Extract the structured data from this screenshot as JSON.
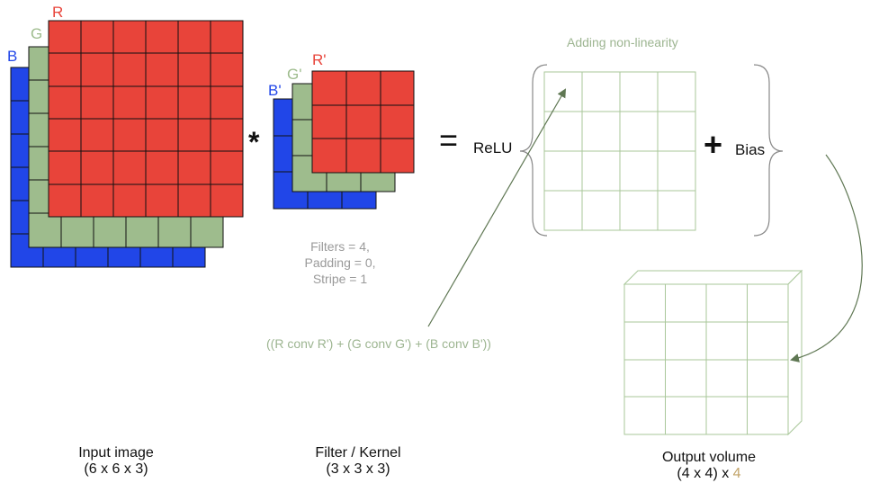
{
  "input": {
    "r_label": "R",
    "g_label": "G",
    "b_label": "B",
    "caption_line1": "Input image",
    "caption_line2": "(6 x 6 x 3)"
  },
  "filter": {
    "r_label": "R'",
    "g_label": "G'",
    "b_label": "B'",
    "caption_line1": "Filter / Kernel",
    "caption_line2": "(3 x 3 x 3)",
    "params": [
      "Filters = 4,",
      "Padding = 0,",
      "Stripe = 1"
    ]
  },
  "operators": {
    "convolve": "*",
    "equals": "=",
    "plus": "+"
  },
  "relu": {
    "label": "ReLU",
    "title": "Adding non-linearity"
  },
  "bias": {
    "label": "Bias"
  },
  "formula": "((R conv R') + (G conv G') + (B conv B'))",
  "output": {
    "caption_line1": "Output volume",
    "caption_main": "(4 x 4) x ",
    "caption_depth": "4"
  },
  "colors": {
    "red": "#e8443a",
    "green": "#9ebc8d",
    "blue": "#2146e8",
    "line_green": "#a9c79a",
    "arrow": "#5f7753",
    "depth": "#c2a46a"
  }
}
